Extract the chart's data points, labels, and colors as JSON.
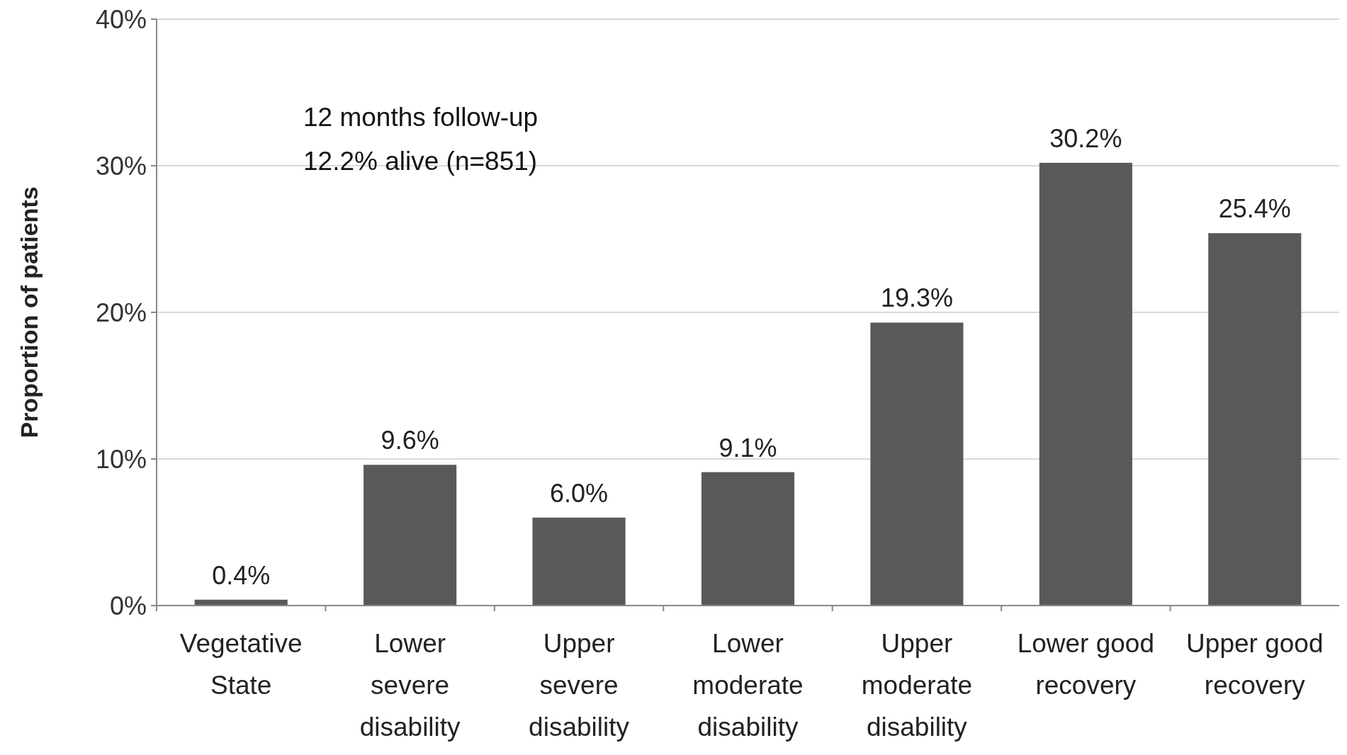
{
  "chart_data": {
    "type": "bar",
    "ylabel": "Proportion of patients",
    "categories": [
      "Vegetative State",
      "Lower severe disability",
      "Upper severe disability",
      "Lower moderate disability",
      "Upper moderate disability",
      "Lower good recovery",
      "Upper good recovery"
    ],
    "values": [
      0.4,
      9.6,
      6.0,
      9.1,
      19.3,
      30.2,
      25.4
    ],
    "value_labels": [
      "0.4%",
      "9.6%",
      "6.0%",
      "9.1%",
      "19.3%",
      "30.2%",
      "25.4%"
    ],
    "color": "#595959",
    "ylim": [
      0,
      40
    ],
    "yticks": [
      {
        "value": 0,
        "label": "0%"
      },
      {
        "value": 10,
        "label": "10%"
      },
      {
        "value": 20,
        "label": "20%"
      },
      {
        "value": 30,
        "label": "30%"
      },
      {
        "value": 40,
        "label": "40%"
      }
    ],
    "grid": "y",
    "annotations": [
      "12 months follow-up",
      "12.2% alive (n=851)"
    ]
  }
}
